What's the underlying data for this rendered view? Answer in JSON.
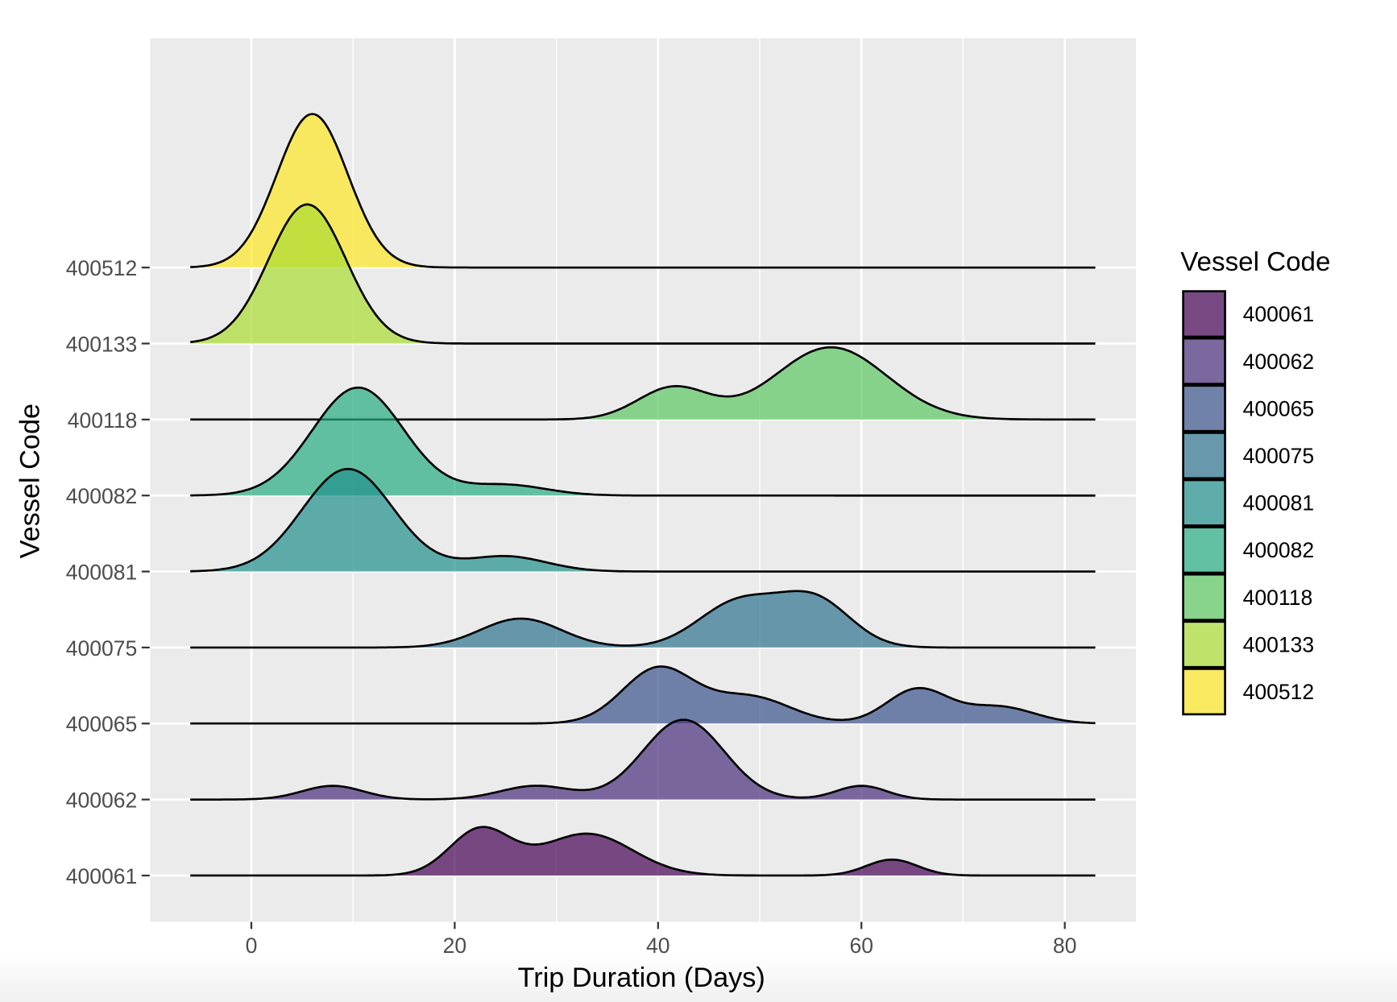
{
  "chart_data": {
    "type": "ridgeline",
    "title": "",
    "xlabel": "Trip Duration (Days)",
    "ylabel": "Vessel Code",
    "xlim": [
      -10,
      87
    ],
    "xticks": [
      0,
      20,
      40,
      60,
      80
    ],
    "grid": true,
    "legend": {
      "title": "Vessel Code",
      "position": "right"
    },
    "fill_opacity": 0.7,
    "series": [
      {
        "name": "400061",
        "color": "#440154",
        "components": [
          [
            22.5,
            3,
            0.6
          ],
          [
            33,
            4.5,
            0.55
          ],
          [
            63,
            2.5,
            0.21
          ]
        ]
      },
      {
        "name": "400062",
        "color": "#472D7B",
        "components": [
          [
            8,
            3,
            0.18
          ],
          [
            28,
            3.5,
            0.18
          ],
          [
            42.5,
            4,
            1.05
          ],
          [
            60,
            2.5,
            0.18
          ]
        ]
      },
      {
        "name": "400065",
        "color": "#3B528B",
        "components": [
          [
            40,
            3.5,
            0.72
          ],
          [
            49,
            4,
            0.35
          ],
          [
            65.5,
            3,
            0.45
          ],
          [
            73.5,
            3.5,
            0.22
          ]
        ]
      },
      {
        "name": "400075",
        "color": "#2C728E",
        "components": [
          [
            26.5,
            4,
            0.38
          ],
          [
            48,
            4,
            0.6
          ],
          [
            55.5,
            3.5,
            0.6
          ]
        ]
      },
      {
        "name": "400081",
        "color": "#21908C",
        "components": [
          [
            9.5,
            4.5,
            1.35
          ],
          [
            25,
            4,
            0.2
          ]
        ]
      },
      {
        "name": "400082",
        "color": "#27AD81",
        "components": [
          [
            10.5,
            4.5,
            1.42
          ],
          [
            25,
            4,
            0.14
          ]
        ]
      },
      {
        "name": "400118",
        "color": "#5DC863",
        "components": [
          [
            41.5,
            3.5,
            0.42
          ],
          [
            57,
            5.5,
            0.95
          ]
        ]
      },
      {
        "name": "400133",
        "color": "#AADC32",
        "components": [
          [
            5.5,
            3.8,
            1.83
          ]
        ]
      },
      {
        "name": "400512",
        "color": "#FDE725",
        "components": [
          [
            6,
            3.5,
            2.02
          ]
        ]
      }
    ],
    "density_range": [
      -6,
      83
    ]
  }
}
